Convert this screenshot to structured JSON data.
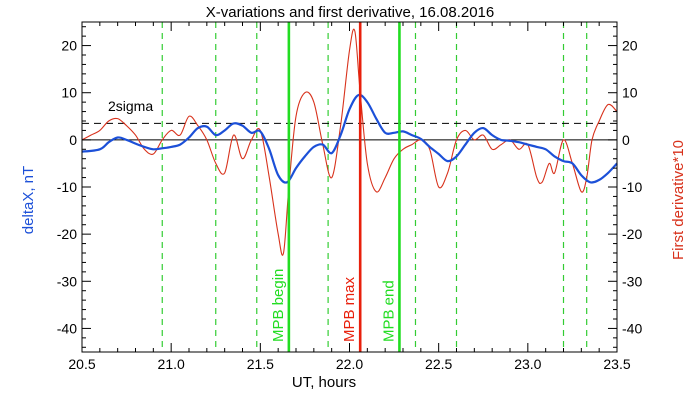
{
  "chart_data": {
    "type": "line",
    "title": "X-variations and first derivative, 16.08.2016",
    "xlabel": "UT, hours",
    "ylabel_left": "deltaX, nT",
    "ylabel_right": "First derivative*10",
    "xlim": [
      20.5,
      23.5
    ],
    "ylim": [
      -45,
      25
    ],
    "x_ticks": [
      20.5,
      21.0,
      21.5,
      22.0,
      22.5,
      23.0,
      23.5
    ],
    "y_ticks": [
      20,
      10,
      0,
      -10,
      -20,
      -30,
      -40
    ],
    "x_tick_labels": [
      "20.5",
      "21.0",
      "21.5",
      "22.0",
      "22.5",
      "23.0",
      "23.5"
    ],
    "y_tick_labels": [
      "20",
      "10",
      "0",
      "-10",
      "-20",
      "-30",
      "-40"
    ],
    "sigma_label": "2sigma",
    "sigma_level": 3.5,
    "colors": {
      "deltaX": "#1c50d8",
      "derivative": "#d8321c",
      "mpb_marker": "#22dd22",
      "mpb_max": "#e8200c",
      "dashed_marker": "#33cc33",
      "axes": "#000000"
    },
    "series": [
      {
        "name": "deltaX, nT",
        "axis": "left",
        "color": "#1c50d8",
        "x": [
          20.5,
          20.6,
          20.65,
          20.7,
          20.75,
          20.8,
          20.85,
          20.9,
          20.95,
          21.0,
          21.05,
          21.1,
          21.15,
          21.2,
          21.25,
          21.3,
          21.35,
          21.4,
          21.45,
          21.5,
          21.55,
          21.6,
          21.65,
          21.7,
          21.75,
          21.8,
          21.85,
          21.9,
          21.95,
          22.0,
          22.05,
          22.1,
          22.15,
          22.2,
          22.25,
          22.3,
          22.35,
          22.4,
          22.45,
          22.5,
          22.55,
          22.6,
          22.65,
          22.7,
          22.75,
          22.8,
          22.85,
          22.9,
          22.95,
          23.0,
          23.05,
          23.1,
          23.15,
          23.2,
          23.25,
          23.3,
          23.35,
          23.4,
          23.45,
          23.5
        ],
        "y": [
          -2.5,
          -2.0,
          -0.5,
          0.5,
          0.0,
          -0.8,
          -1.5,
          -2.0,
          -1.8,
          -1.5,
          -1.0,
          0.5,
          2.5,
          2.8,
          1.0,
          2.0,
          3.5,
          3.0,
          1.5,
          1.8,
          -2.0,
          -7.5,
          -9.0,
          -6.0,
          -3.5,
          -1.5,
          -1.0,
          -2.8,
          1.0,
          6.5,
          9.5,
          8.0,
          4.5,
          1.5,
          1.5,
          1.8,
          1.0,
          0.2,
          -1.5,
          -3.0,
          -4.5,
          -3.5,
          -1.0,
          1.5,
          2.5,
          1.0,
          0.0,
          -0.2,
          -0.5,
          -1.0,
          -1.5,
          -2.0,
          -3.5,
          -4.5,
          -5.0,
          -7.5,
          -9.0,
          -8.5,
          -7.0,
          -5.0
        ]
      },
      {
        "name": "First derivative*10",
        "axis": "right",
        "color": "#d8321c",
        "x": [
          20.5,
          20.55,
          20.6,
          20.65,
          20.7,
          20.75,
          20.8,
          20.85,
          20.9,
          20.95,
          21.0,
          21.05,
          21.1,
          21.15,
          21.2,
          21.25,
          21.3,
          21.35,
          21.4,
          21.45,
          21.5,
          21.55,
          21.6,
          21.63,
          21.66,
          21.7,
          21.75,
          21.8,
          21.85,
          21.9,
          21.95,
          22.0,
          22.03,
          22.06,
          22.1,
          22.15,
          22.2,
          22.25,
          22.3,
          22.35,
          22.4,
          22.45,
          22.5,
          22.55,
          22.6,
          22.65,
          22.7,
          22.75,
          22.8,
          22.85,
          22.9,
          22.95,
          23.0,
          23.05,
          23.08,
          23.12,
          23.15,
          23.2,
          23.25,
          23.3,
          23.33,
          23.36,
          23.4,
          23.45,
          23.5
        ],
        "y": [
          0.0,
          1.0,
          2.0,
          4.0,
          4.5,
          3.0,
          1.0,
          -2.0,
          -3.0,
          0.0,
          2.0,
          1.0,
          5.0,
          3.0,
          0.0,
          -5.0,
          -7.0,
          1.0,
          -4.0,
          0.0,
          2.0,
          -8.0,
          -20.0,
          -24.0,
          -10.0,
          5.0,
          10.0,
          8.0,
          -1.0,
          -8.0,
          3.0,
          19.0,
          23.0,
          10.0,
          -5.0,
          -11.0,
          -8.0,
          -4.0,
          -2.0,
          -1.0,
          0.0,
          -2.0,
          -10.0,
          -7.0,
          0.0,
          2.0,
          0.0,
          1.0,
          -2.0,
          -1.0,
          0.0,
          -2.0,
          -1.0,
          -8.0,
          -9.0,
          -5.0,
          -7.0,
          0.0,
          -5.0,
          -11.0,
          -8.0,
          0.0,
          4.0,
          7.5,
          6.0
        ]
      }
    ],
    "vertical_markers": [
      {
        "x": 21.66,
        "label": "MPB begin",
        "color": "#22dd22",
        "style": "solid"
      },
      {
        "x": 22.06,
        "label": "MPB max",
        "color": "#e8200c",
        "style": "solid"
      },
      {
        "x": 22.28,
        "label": "MPB end",
        "color": "#22dd22",
        "style": "solid"
      }
    ],
    "dashed_markers": [
      20.95,
      21.25,
      21.48,
      21.88,
      22.37,
      22.6,
      23.2,
      23.33
    ],
    "grid": false,
    "legend": "none"
  }
}
